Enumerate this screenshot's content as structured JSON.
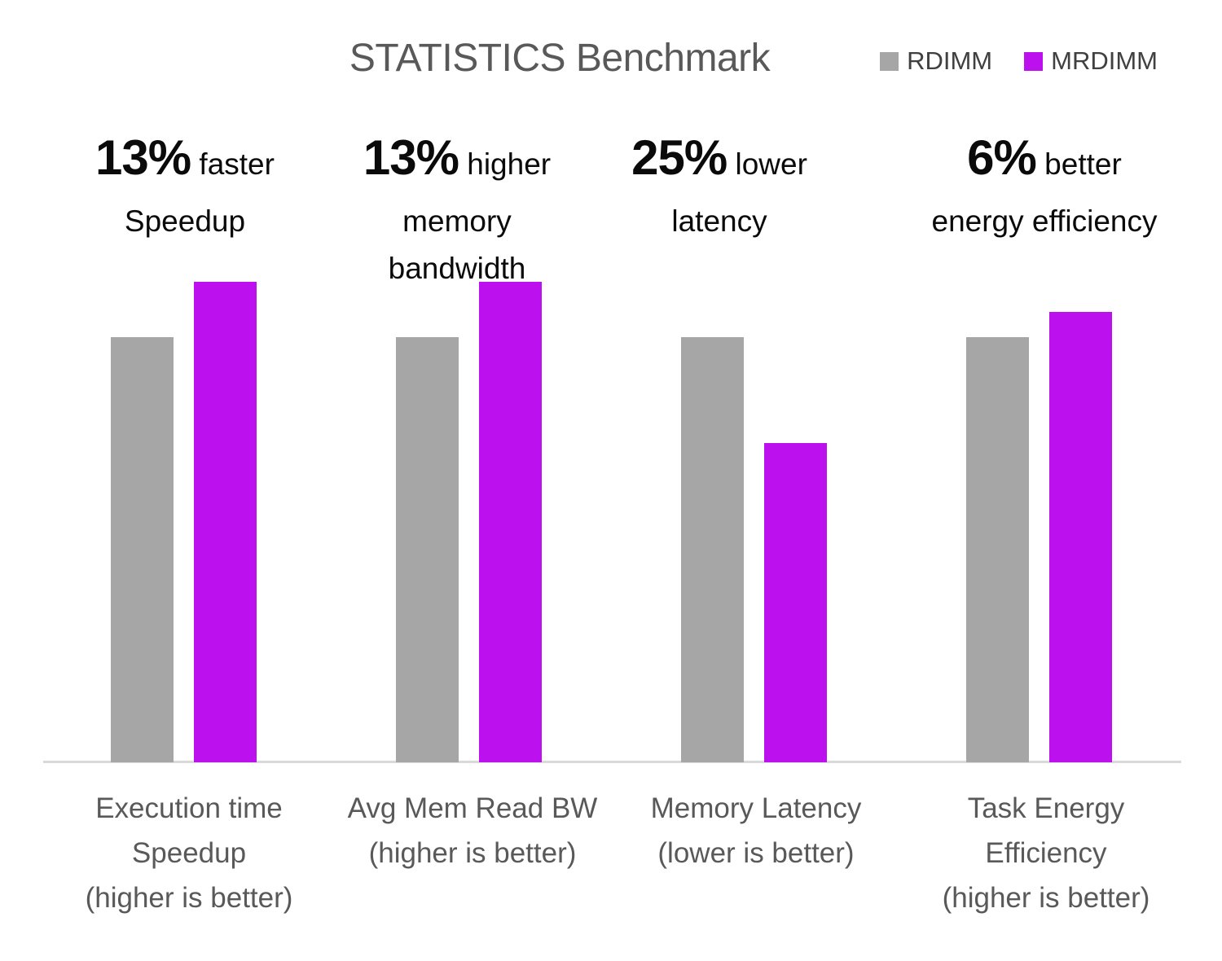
{
  "title": "STATISTICS Benchmark",
  "chart_data": {
    "type": "bar",
    "title": "STATISTICS Benchmark",
    "categories": [
      "Execution time Speedup (higher is better)",
      "Avg Mem Read BW (higher is better)",
      "Memory Latency (lower is better)",
      "Task Energy Efficiency (higher is better)"
    ],
    "category_label_lines": [
      [
        "Execution time",
        "Speedup",
        "(higher is better)"
      ],
      [
        "Avg Mem Read BW",
        "(higher is better)"
      ],
      [
        "Memory Latency",
        "(lower is better)"
      ],
      [
        "Task Energy",
        "Efficiency",
        "(higher is better)"
      ]
    ],
    "series": [
      {
        "name": "RDIMM",
        "color": "#A6A6A6",
        "values": [
          1.0,
          1.0,
          1.0,
          1.0
        ]
      },
      {
        "name": "MRDIMM",
        "color": "#BC11EE",
        "values": [
          1.13,
          1.13,
          0.75,
          1.06
        ]
      }
    ],
    "annotations": [
      {
        "highlight": "13%",
        "inline": "faster",
        "lines": [
          "Speedup"
        ]
      },
      {
        "highlight": "13%",
        "inline": "higher",
        "lines": [
          "memory",
          "bandwidth"
        ]
      },
      {
        "highlight": "25%",
        "inline": "lower",
        "lines": [
          "latency"
        ]
      },
      {
        "highlight": "6%",
        "inline": "better",
        "lines": [
          "energy efficiency"
        ]
      }
    ],
    "ylim": [
      0,
      1.16
    ],
    "grid": false,
    "legend_position": "top-right",
    "xlabel": "",
    "ylabel": ""
  },
  "colors": {
    "axis_line": "#D9D9D9",
    "title_text": "#595959",
    "category_label_text": "#595959",
    "legend_text": "#404040",
    "annotation_text": "#0A0A0A",
    "background": "#FFFFFF"
  }
}
